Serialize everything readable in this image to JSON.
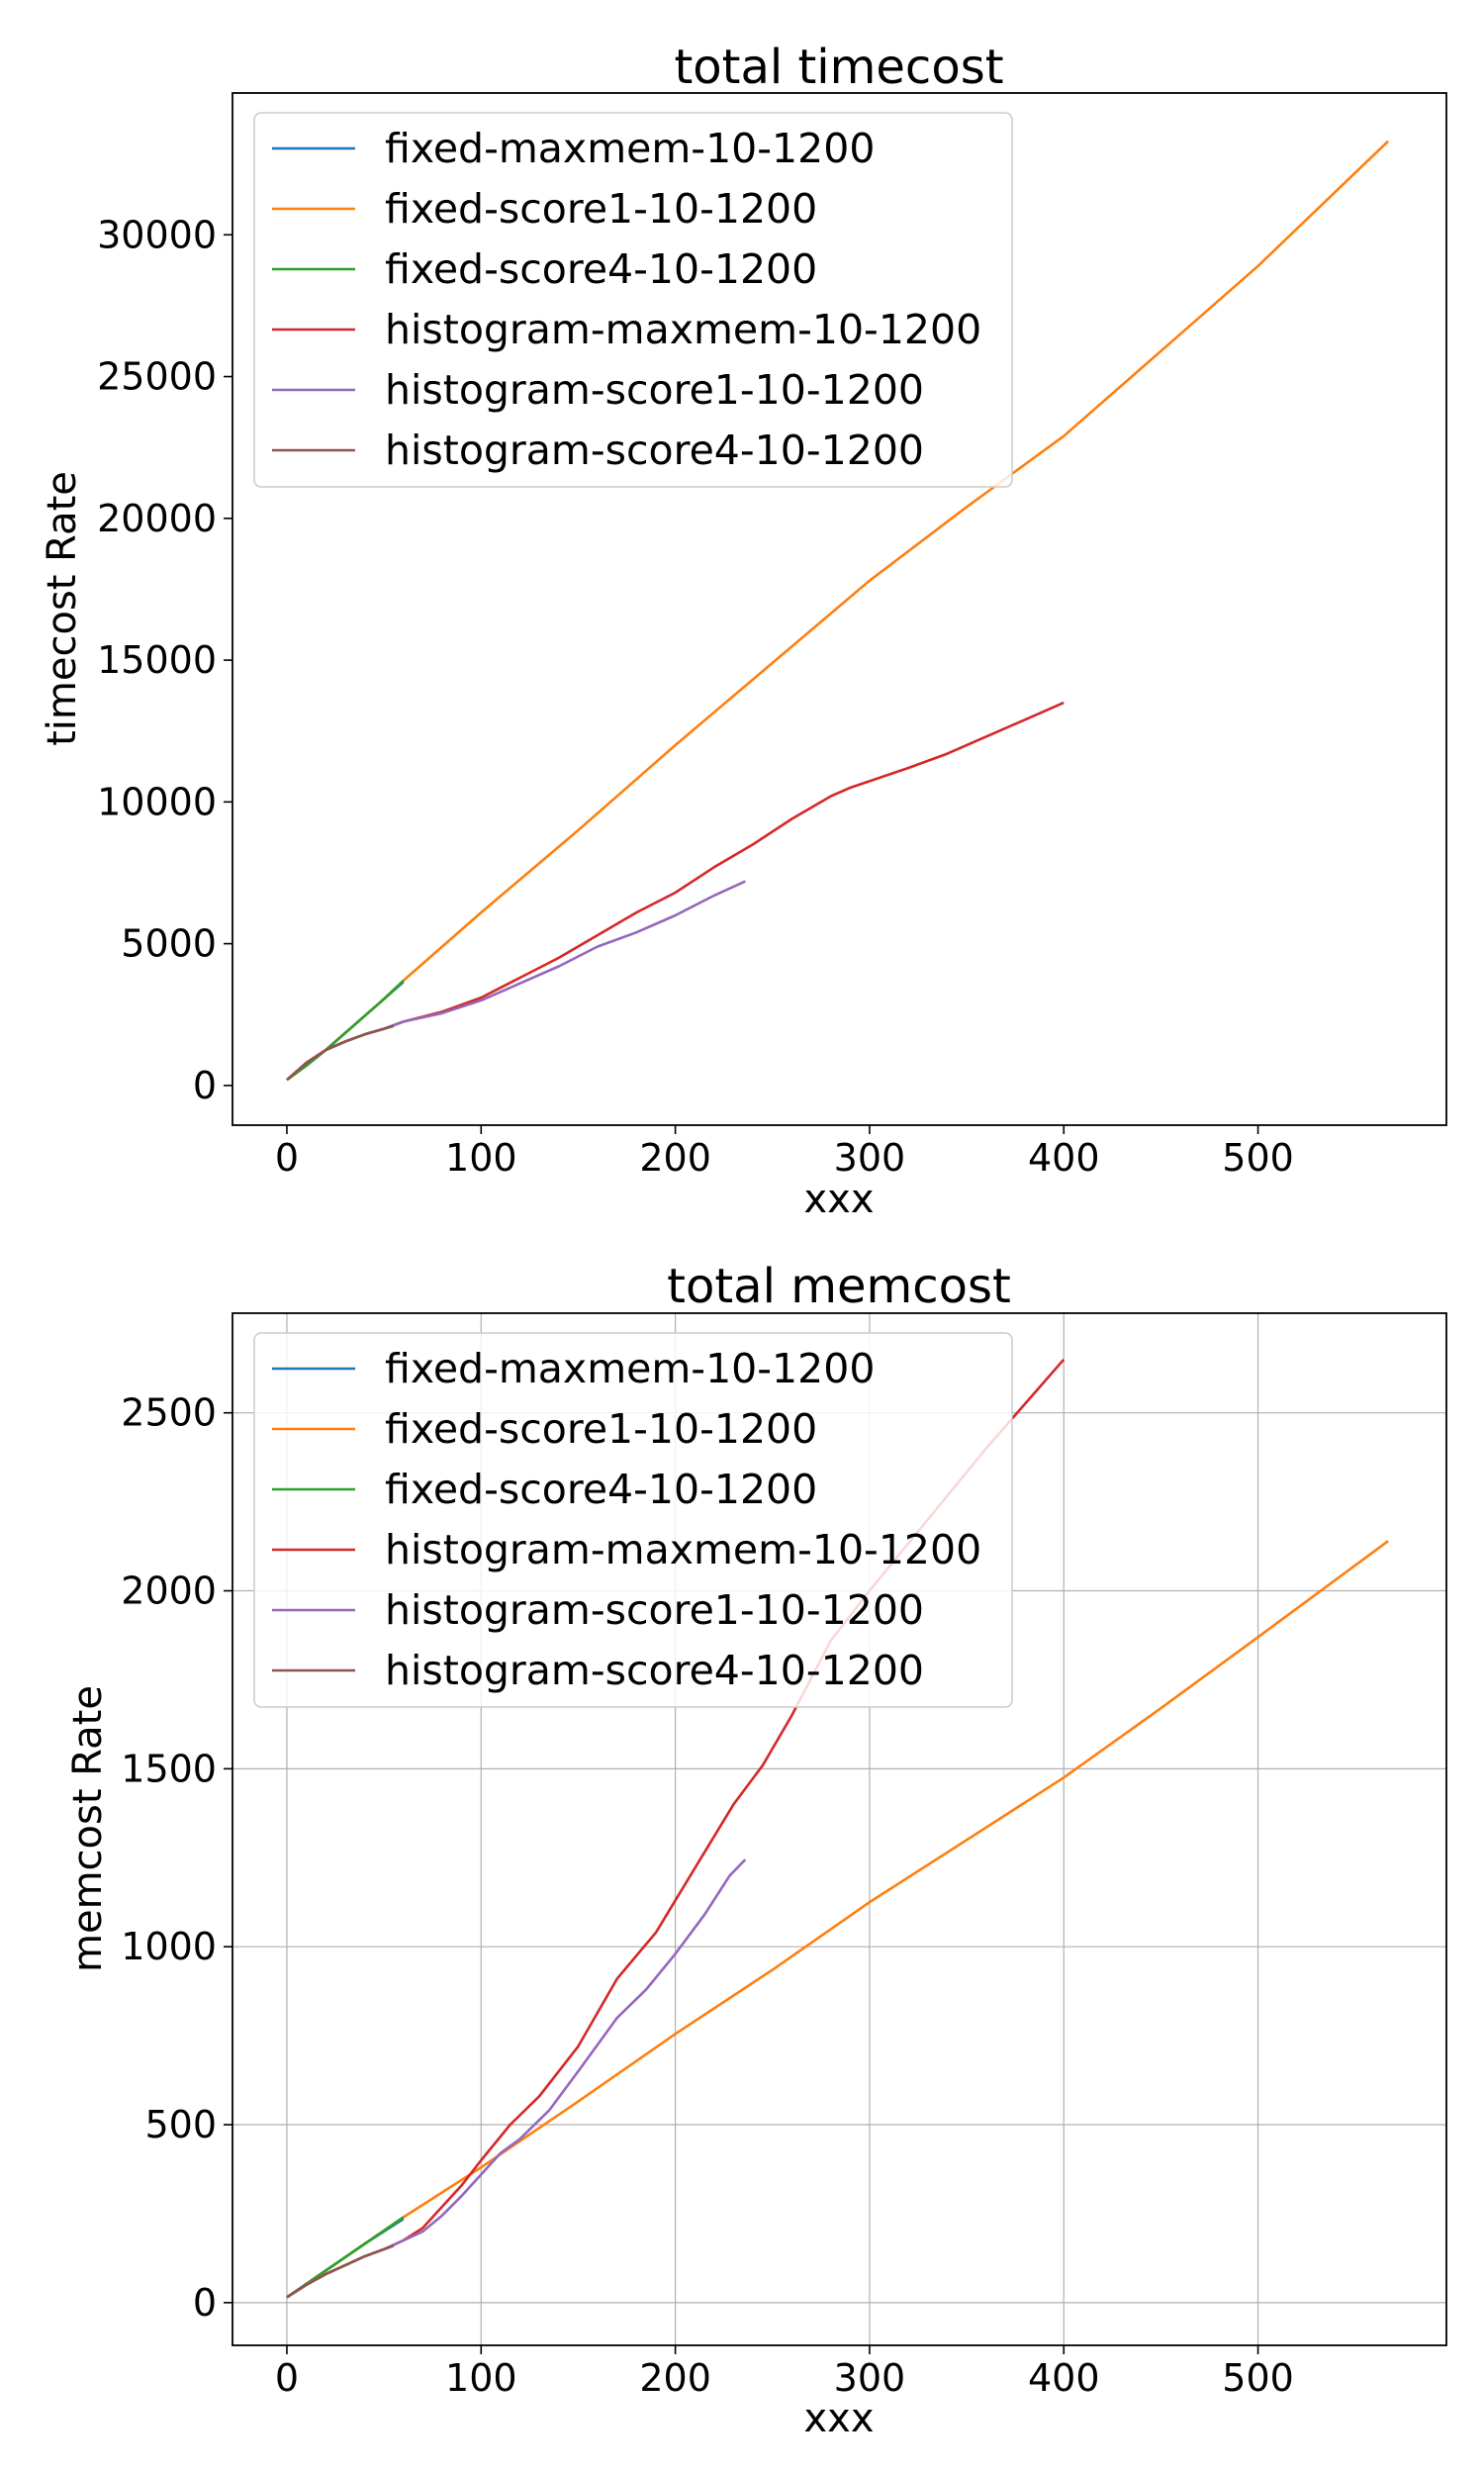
{
  "chart_data": [
    {
      "type": "line",
      "title": "total timecost",
      "xlabel": "xxx",
      "ylabel": "timecost Rate",
      "xlim": [
        -28,
        597
      ],
      "ylim": [
        -1400,
        35000
      ],
      "xticks": [
        0,
        100,
        200,
        300,
        400,
        500
      ],
      "yticks": [
        0,
        5000,
        10000,
        15000,
        20000,
        25000,
        30000
      ],
      "grid": false,
      "legend_position": "top-left",
      "series": [
        {
          "name": "fixed-maxmem-10-1200",
          "color": "#1f77b4",
          "x": [
            0,
            10,
            20,
            30,
            40,
            50,
            60
          ],
          "y": [
            200,
            700,
            1250,
            1850,
            2450,
            3050,
            3650
          ]
        },
        {
          "name": "fixed-score1-10-1200",
          "color": "#ff7f0e",
          "x": [
            0,
            10,
            20,
            30,
            40,
            50,
            60,
            100,
            150,
            200,
            250,
            300,
            350,
            400,
            450,
            500,
            567
          ],
          "y": [
            200,
            700,
            1250,
            1850,
            2450,
            3050,
            3700,
            6100,
            9000,
            12000,
            14900,
            17800,
            20400,
            22900,
            25900,
            28900,
            33300
          ]
        },
        {
          "name": "fixed-score4-10-1200",
          "color": "#2ca02c",
          "x": [
            0,
            10,
            20,
            30,
            40,
            50,
            60
          ],
          "y": [
            200,
            700,
            1250,
            1850,
            2450,
            3050,
            3700
          ]
        },
        {
          "name": "histogram-maxmem-10-1200",
          "color": "#d62728",
          "x": [
            0,
            10,
            20,
            30,
            40,
            50,
            60,
            80,
            100,
            120,
            140,
            160,
            180,
            200,
            220,
            240,
            260,
            280,
            290,
            320,
            340,
            360,
            380,
            400
          ],
          "y": [
            200,
            800,
            1250,
            1550,
            1800,
            2000,
            2250,
            2600,
            3100,
            3800,
            4500,
            5300,
            6100,
            6800,
            7700,
            8500,
            9400,
            10200,
            10500,
            11200,
            11700,
            12300,
            12900,
            13500
          ]
        },
        {
          "name": "histogram-score1-10-1200",
          "color": "#9467bd",
          "x": [
            0,
            10,
            20,
            30,
            40,
            50,
            60,
            80,
            100,
            120,
            140,
            160,
            180,
            200,
            220,
            236
          ],
          "y": [
            200,
            800,
            1250,
            1550,
            1800,
            2000,
            2250,
            2550,
            3000,
            3600,
            4200,
            4900,
            5400,
            6000,
            6700,
            7200
          ]
        },
        {
          "name": "histogram-score4-10-1200",
          "color": "#8c564b",
          "x": [
            0,
            10,
            20,
            30,
            40,
            50,
            55
          ],
          "y": [
            200,
            800,
            1250,
            1550,
            1800,
            2000,
            2100
          ]
        }
      ]
    },
    {
      "type": "line",
      "title": "total memcost",
      "xlabel": "xxx",
      "ylabel": "memcost Rate",
      "xlim": [
        -28,
        597
      ],
      "ylim": [
        -120,
        2780
      ],
      "xticks": [
        0,
        100,
        200,
        300,
        400,
        500
      ],
      "yticks": [
        0,
        500,
        1000,
        1500,
        2000,
        2500
      ],
      "grid": true,
      "legend_position": "top-left",
      "series": [
        {
          "name": "fixed-maxmem-10-1200",
          "color": "#1f77b4",
          "x": [
            0,
            20,
            40,
            60
          ],
          "y": [
            15,
            90,
            165,
            235
          ]
        },
        {
          "name": "fixed-score1-10-1200",
          "color": "#ff7f0e",
          "x": [
            0,
            20,
            40,
            60,
            100,
            150,
            200,
            250,
            300,
            350,
            400,
            450,
            500,
            567
          ],
          "y": [
            15,
            90,
            165,
            240,
            380,
            565,
            755,
            935,
            1125,
            1300,
            1475,
            1670,
            1870,
            2140
          ]
        },
        {
          "name": "fixed-score4-10-1200",
          "color": "#2ca02c",
          "x": [
            0,
            20,
            40,
            60
          ],
          "y": [
            15,
            90,
            165,
            240
          ]
        },
        {
          "name": "histogram-maxmem-10-1200",
          "color": "#d62728",
          "x": [
            0,
            10,
            20,
            30,
            40,
            50,
            60,
            70,
            80,
            90,
            100,
            115,
            130,
            150,
            170,
            190,
            210,
            230,
            245,
            260,
            280,
            300,
            330,
            360,
            400
          ],
          "y": [
            15,
            50,
            80,
            105,
            130,
            150,
            175,
            210,
            270,
            330,
            400,
            500,
            580,
            720,
            910,
            1040,
            1220,
            1400,
            1510,
            1650,
            1860,
            2000,
            2200,
            2400,
            2650
          ]
        },
        {
          "name": "histogram-score1-10-1200",
          "color": "#9467bd",
          "x": [
            0,
            10,
            20,
            30,
            40,
            50,
            60,
            70,
            80,
            90,
            100,
            110,
            120,
            135,
            150,
            170,
            185,
            200,
            215,
            228,
            236
          ],
          "y": [
            15,
            50,
            80,
            105,
            130,
            150,
            175,
            200,
            245,
            300,
            360,
            420,
            460,
            540,
            650,
            800,
            880,
            980,
            1090,
            1200,
            1245
          ]
        },
        {
          "name": "histogram-score4-10-1200",
          "color": "#8c564b",
          "x": [
            0,
            10,
            20,
            30,
            40,
            50,
            55
          ],
          "y": [
            15,
            50,
            80,
            105,
            130,
            150,
            160
          ]
        }
      ]
    }
  ]
}
